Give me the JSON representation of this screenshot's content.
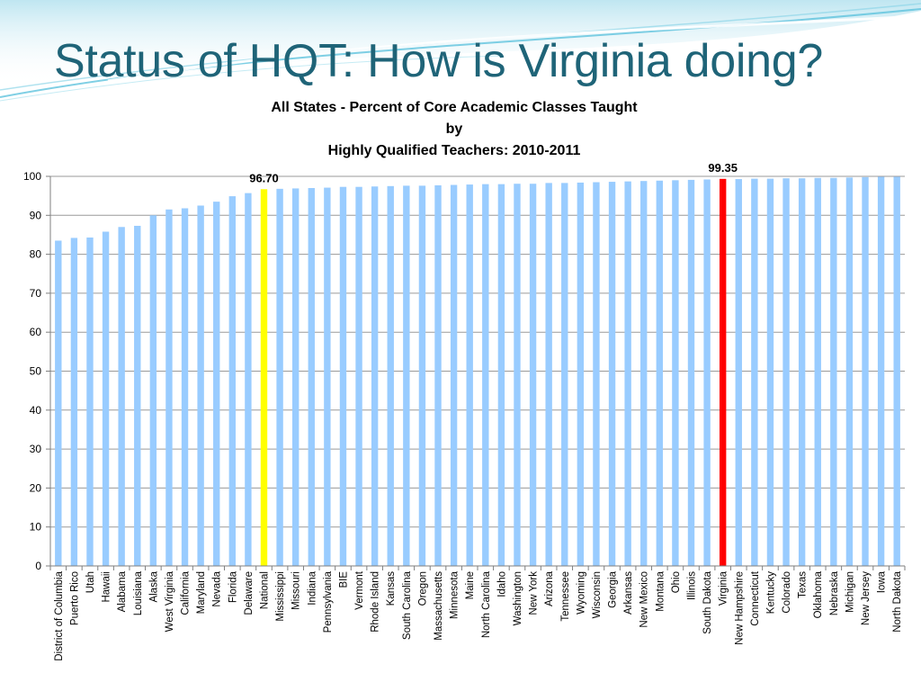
{
  "slide": {
    "title": "Status of HQT: How is Virginia doing?"
  },
  "chart_data": {
    "type": "bar",
    "title_lines": [
      "All States - Percent of Core Academic Classes Taught",
      "by",
      "Highly Qualified Teachers: 2010-2011"
    ],
    "xlabel": "",
    "ylabel": "",
    "ylim": [
      0,
      100
    ],
    "yticks": [
      0,
      10,
      20,
      30,
      40,
      50,
      60,
      70,
      80,
      90,
      100
    ],
    "grid": true,
    "legend": "none",
    "categories": [
      "District of Columbia",
      "Puerto Rico",
      "Utah",
      "Hawaii",
      "Alabama",
      "Louisiana",
      "Alaska",
      "West Virginia",
      "California",
      "Maryland",
      "Nevada",
      "Florida",
      "Delaware",
      "National",
      "Mississippi",
      "Missouri",
      "Indiana",
      "Pennsylvania",
      "BIE",
      "Vermont",
      "Rhode Island",
      "Kansas",
      "South Carolina",
      "Oregon",
      "Massachusetts",
      "Minnesota",
      "Maine",
      "North Carolina",
      "Idaho",
      "Washington",
      "New York",
      "Arizona",
      "Tennessee",
      "Wyoming",
      "Wisconsin",
      "Georgia",
      "Arkansas",
      "New Mexico",
      "Montana",
      "Ohio",
      "Illinois",
      "South Dakota",
      "Virginia",
      "New Hampshire",
      "Connecticut",
      "Kentucky",
      "Colorado",
      "Texas",
      "Oklahoma",
      "Nebraska",
      "Michigan",
      "New Jersey",
      "Iowa",
      "North Dakota"
    ],
    "values": [
      83.5,
      84.2,
      84.3,
      85.8,
      87.0,
      87.3,
      90.0,
      91.5,
      91.8,
      92.5,
      93.5,
      94.9,
      95.7,
      96.7,
      96.8,
      96.9,
      97.0,
      97.1,
      97.3,
      97.3,
      97.4,
      97.5,
      97.6,
      97.6,
      97.7,
      97.8,
      97.9,
      98.0,
      98.0,
      98.1,
      98.1,
      98.3,
      98.3,
      98.4,
      98.5,
      98.6,
      98.7,
      98.8,
      98.9,
      99.0,
      99.1,
      99.2,
      99.35,
      99.3,
      99.4,
      99.4,
      99.5,
      99.5,
      99.6,
      99.6,
      99.7,
      99.8,
      99.9,
      99.9
    ],
    "highlights": [
      {
        "category": "National",
        "label": "96.70",
        "color": "#ffff00"
      },
      {
        "category": "Virginia",
        "label": "99.35",
        "color": "#ff0000"
      }
    ],
    "colors": {
      "bar": "#99ccff",
      "grid": "#9a9a9a",
      "axis": "#7f7f7f",
      "title": "#1f6478"
    }
  }
}
